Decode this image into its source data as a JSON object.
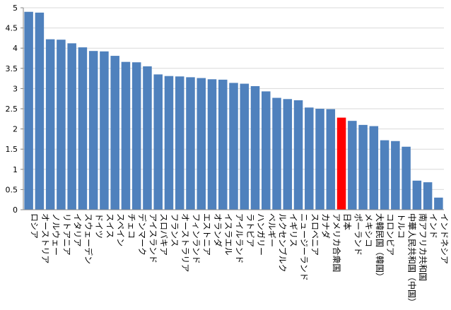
{
  "chart_data": {
    "type": "bar",
    "title": "",
    "xlabel": "",
    "ylabel": "",
    "ylim": [
      0,
      5
    ],
    "yticks": [
      "0",
      "0.5",
      "1",
      "1.5",
      "2",
      "2.5",
      "3",
      "3.5",
      "4",
      "4.5",
      "5"
    ],
    "grid": true,
    "legend": "none",
    "bar_color": "#4f81bd",
    "highlight_color": "#ff0000",
    "highlight_category": "日本",
    "categories": [
      "ロシア",
      "オーストリア",
      "ノルウェー",
      "リトアニア",
      "イタリア",
      "スウェーデン",
      "ドイツ",
      "スイス",
      "スペイン",
      "チェコ",
      "デンマーク",
      "アイスランド",
      "スロバキア",
      "フランス",
      "オーストラリア",
      "フィンランド",
      "エストニア",
      "オランダ",
      "イスラエル",
      "アイルランド",
      "ラトビア",
      "ハンガリー",
      "ベルギー",
      "ルクセンブルク",
      "イギリス",
      "ニュージーランド",
      "スロベニア",
      "カナダ",
      "アメリカ合衆国",
      "日本",
      "ポーランド",
      "メキシコ",
      "大韓民国（韓国）",
      "コロンビア",
      "トルコ",
      "中華人民共和国（中国）",
      "南アフリカ共和国",
      "インド",
      "インドネシア"
    ],
    "values": [
      4.9,
      4.88,
      4.22,
      4.21,
      4.12,
      4.02,
      3.93,
      3.92,
      3.81,
      3.66,
      3.65,
      3.55,
      3.35,
      3.31,
      3.3,
      3.28,
      3.26,
      3.23,
      3.22,
      3.14,
      3.12,
      3.06,
      2.93,
      2.77,
      2.74,
      2.71,
      2.53,
      2.5,
      2.49,
      2.28,
      2.2,
      2.1,
      2.07,
      1.72,
      1.7,
      1.56,
      0.72,
      0.68,
      0.3
    ]
  }
}
